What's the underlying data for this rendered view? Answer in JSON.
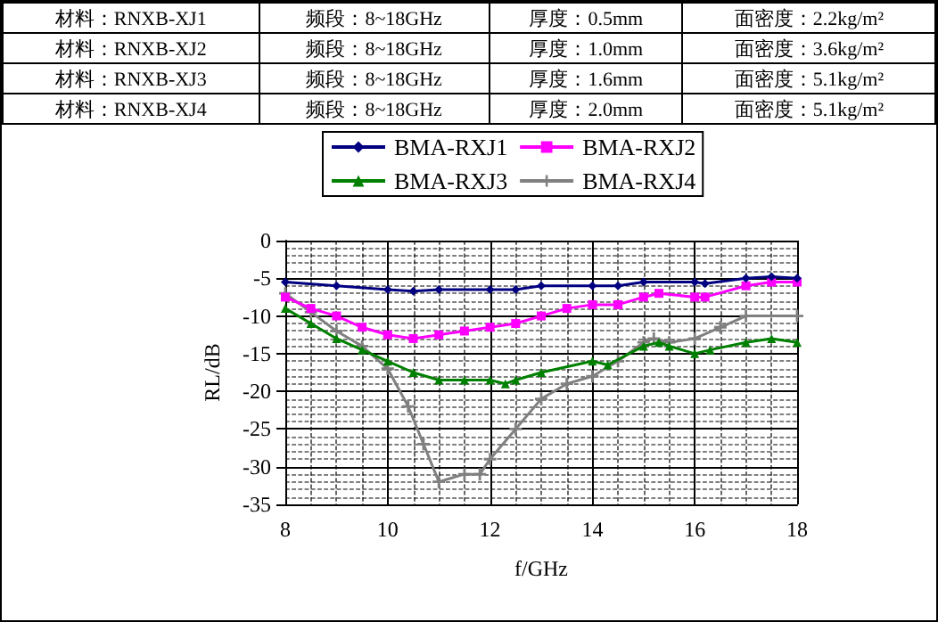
{
  "chart_data": {
    "type": "line",
    "annotations": [
      "材料：RNXB-XJ1",
      "频段：8~18GHz",
      "厚度：0.5mm",
      "面密度：2.2kg/m²",
      "材料：RNXB-XJ2",
      "频段：8~18GHz",
      "厚度：1.0mm",
      "面密度：3.6kg/m²",
      "材料：RNXB-XJ3",
      "频段：8~18GHz",
      "厚度：1.6mm",
      "面密度：5.1kg/m²",
      "材料：RNXB-XJ4",
      "频段：8~18GHz",
      "厚度：2.0mm",
      "面密度：5.1kg/m²"
    ],
    "xlabel": "f/GHz",
    "ylabel": "RL/dB",
    "xlim": [
      8,
      18
    ],
    "xticks": [
      8,
      10,
      12,
      14,
      16,
      18
    ],
    "ylim": [
      -35,
      0
    ],
    "yticks": [
      -35,
      -30,
      -25,
      -20,
      -15,
      -10,
      -5,
      0
    ],
    "grid": true,
    "legend": "top",
    "line_style": "solid",
    "series": [
      {
        "name": "BMA-RXJ1",
        "color": "#000080",
        "marker": "diamond",
        "x": [
          8,
          9,
          10,
          10.5,
          11,
          12,
          12.5,
          13,
          14,
          14.5,
          15,
          16,
          16.2,
          17,
          17.5,
          18
        ],
        "values": [
          -5.5,
          -6,
          -6.5,
          -6.7,
          -6.5,
          -6.5,
          -6.5,
          -6,
          -6,
          -6,
          -5.5,
          -5.5,
          -5.7,
          -5,
          -4.8,
          -5
        ]
      },
      {
        "name": "BMA-RXJ2",
        "color": "#ff00ff",
        "marker": "square",
        "x": [
          8,
          8.5,
          9,
          9.5,
          10,
          10.5,
          11,
          11.5,
          12,
          12.5,
          13,
          13.5,
          14,
          14.5,
          15,
          15.3,
          16,
          16.2,
          17,
          17.5,
          18
        ],
        "values": [
          -7.5,
          -9,
          -10,
          -11.5,
          -12.5,
          -13,
          -12.5,
          -12,
          -11.5,
          -11,
          -10,
          -9,
          -8.5,
          -8.5,
          -7.5,
          -7,
          -7.5,
          -7.5,
          -6,
          -5.5,
          -5.5
        ]
      },
      {
        "name": "BMA-RXJ3",
        "color": "#008000",
        "marker": "triangle",
        "x": [
          8,
          8.5,
          9,
          9.5,
          10,
          10.5,
          11,
          11.5,
          12,
          12.3,
          12.5,
          13,
          14,
          14.3,
          15,
          15.3,
          15.5,
          16,
          16.3,
          17,
          17.5,
          18
        ],
        "values": [
          -9,
          -11,
          -13,
          -14.5,
          -16,
          -17.5,
          -18.5,
          -18.5,
          -18.5,
          -19,
          -18.5,
          -17.5,
          -16,
          -16.5,
          -14,
          -13.5,
          -14,
          -15,
          -14.5,
          -13.5,
          -13,
          -13.5
        ]
      },
      {
        "name": "BMA-RXJ4",
        "color": "#808080",
        "marker": "cross",
        "x": [
          8,
          8.5,
          9,
          9.5,
          10,
          10.4,
          10.7,
          11,
          11.5,
          11.8,
          12,
          12.5,
          13,
          13.5,
          14,
          14.5,
          15,
          15.2,
          15.5,
          16,
          16.5,
          17,
          18
        ],
        "values": [
          -7,
          -9.5,
          -12,
          -14,
          -17,
          -22,
          -27,
          -32,
          -31,
          -31,
          -29,
          -25,
          -21,
          -19,
          -18,
          -16,
          -13.5,
          -13,
          -13.5,
          -13,
          -11.5,
          -10,
          -10
        ]
      }
    ]
  }
}
